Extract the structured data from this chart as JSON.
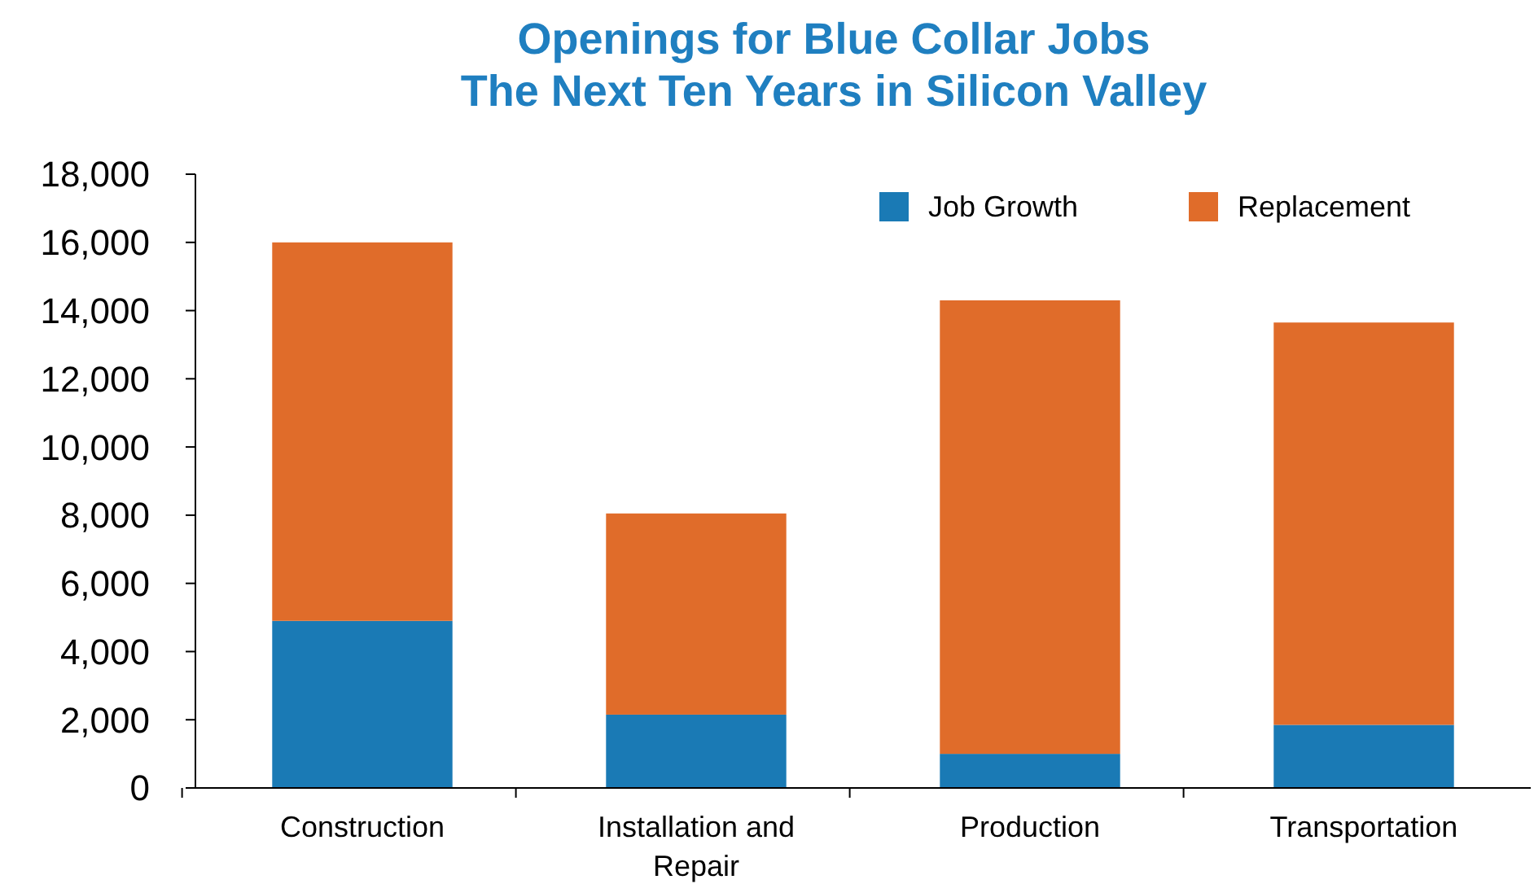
{
  "chart_data": {
    "type": "bar",
    "title": "Openings for Blue Collar Jobs\nThe Next Ten Years in Silicon Valley",
    "categories": [
      "Construction",
      "Installation and Repair",
      "Production",
      "Transportation"
    ],
    "stacked": true,
    "series": [
      {
        "name": "Job Growth",
        "color": "#1a7ab5",
        "values": [
          4900,
          2150,
          1000,
          1850
        ]
      },
      {
        "name": "Replacement",
        "color": "#e06c2a",
        "values": [
          11100,
          5900,
          13300,
          11800
        ]
      }
    ],
    "ylim": [
      0,
      18000
    ],
    "yticks": [
      {
        "value": 0,
        "label": "0"
      },
      {
        "value": 2000,
        "label": "2,000"
      },
      {
        "value": 4000,
        "label": "4,000"
      },
      {
        "value": 6000,
        "label": "6,000"
      },
      {
        "value": 8000,
        "label": "8,000"
      },
      {
        "value": 10000,
        "label": "10,000"
      },
      {
        "value": 12000,
        "label": "12,000"
      },
      {
        "value": 14000,
        "label": "14,000"
      },
      {
        "value": 16000,
        "label": "16,000"
      },
      {
        "value": 18000,
        "label": "18,000"
      }
    ],
    "grid": false,
    "legend": "top right"
  }
}
